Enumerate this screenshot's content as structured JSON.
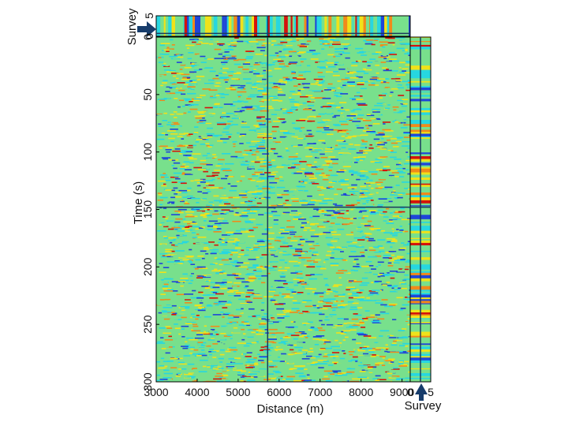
{
  "chart_data": {
    "type": "heatmap",
    "description_colormap": "jet",
    "colors": {
      "blue": "#1f46d8",
      "cyan": "#27d7e0",
      "green": "#78e08c",
      "yellow": "#f0e21a",
      "orange": "#f08a1a",
      "red": "#d4140c",
      "guide_line": "#1b3a5c",
      "arrow": "#173c6b"
    },
    "main": {
      "xlabel": "Distance (m)",
      "ylabel": "Time (s)",
      "xlim": [
        3000,
        9200
      ],
      "ylim": [
        0,
        300
      ],
      "y_inverted": true,
      "xticks": [
        "3000",
        "4000",
        "5000",
        "6000",
        "7000",
        "8000",
        "9000"
      ],
      "yticks": [
        "0",
        "50",
        "100",
        "150",
        "200",
        "250",
        "300"
      ],
      "crosshair": {
        "x": 5720,
        "y": 148
      }
    },
    "top_panel": {
      "ylabel": "Survey",
      "yticks": [
        "5",
        "0"
      ],
      "ylim": [
        0,
        5
      ],
      "arrow_value": 0.7
    },
    "right_panel": {
      "xlabel": "Survey",
      "xticks": [
        "0",
        "5"
      ],
      "xlim": [
        0,
        5
      ],
      "arrow_value": 2.5
    }
  }
}
